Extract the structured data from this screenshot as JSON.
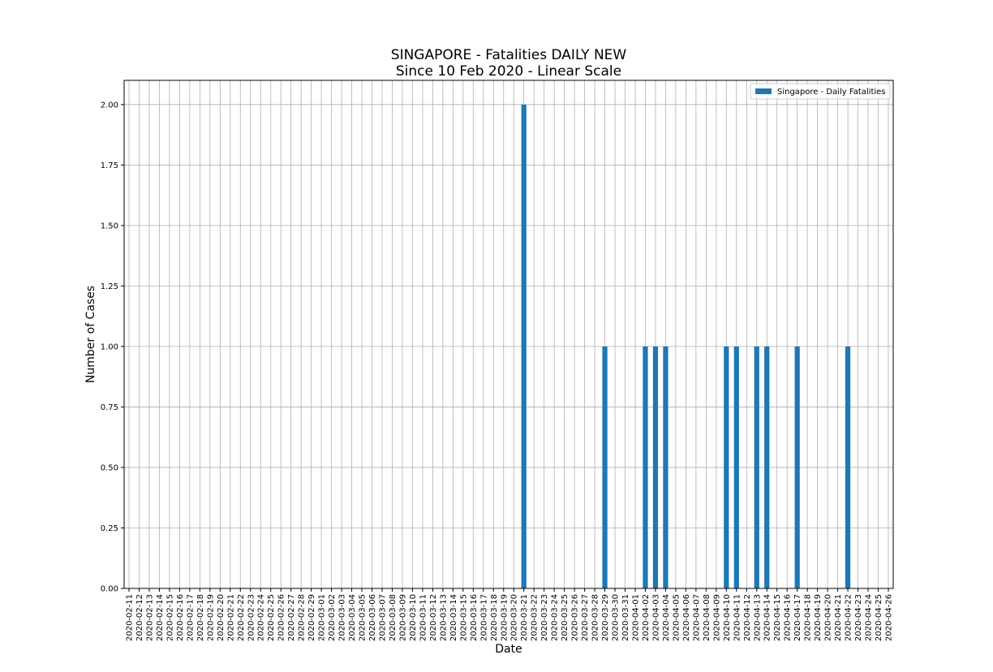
{
  "chart_data": {
    "type": "bar",
    "title": "SINGAPORE - Fatalities DAILY NEW",
    "subtitle": "Since 10 Feb 2020 - Linear Scale",
    "xlabel": "Date",
    "ylabel": "Number of Cases",
    "ylim": [
      0,
      2.1
    ],
    "yticks": [
      "0.00",
      "0.25",
      "0.50",
      "0.75",
      "1.00",
      "1.25",
      "1.50",
      "1.75",
      "2.00"
    ],
    "grid": true,
    "legend_position": "top-right",
    "colors": {
      "bar": "#1f77b4",
      "grid": "#b0b0b0"
    },
    "categories": [
      "2020-02-11",
      "2020-02-12",
      "2020-02-13",
      "2020-02-14",
      "2020-02-15",
      "2020-02-16",
      "2020-02-17",
      "2020-02-18",
      "2020-02-19",
      "2020-02-20",
      "2020-02-21",
      "2020-02-22",
      "2020-02-23",
      "2020-02-24",
      "2020-02-25",
      "2020-02-26",
      "2020-02-27",
      "2020-02-28",
      "2020-02-29",
      "2020-03-01",
      "2020-03-02",
      "2020-03-03",
      "2020-03-04",
      "2020-03-05",
      "2020-03-06",
      "2020-03-07",
      "2020-03-08",
      "2020-03-09",
      "2020-03-10",
      "2020-03-11",
      "2020-03-12",
      "2020-03-13",
      "2020-03-14",
      "2020-03-15",
      "2020-03-16",
      "2020-03-17",
      "2020-03-18",
      "2020-03-19",
      "2020-03-20",
      "2020-03-21",
      "2020-03-22",
      "2020-03-23",
      "2020-03-24",
      "2020-03-25",
      "2020-03-26",
      "2020-03-27",
      "2020-03-28",
      "2020-03-29",
      "2020-03-30",
      "2020-03-31",
      "2020-04-01",
      "2020-04-02",
      "2020-04-03",
      "2020-04-04",
      "2020-04-05",
      "2020-04-06",
      "2020-04-07",
      "2020-04-08",
      "2020-04-09",
      "2020-04-10",
      "2020-04-11",
      "2020-04-12",
      "2020-04-13",
      "2020-04-14",
      "2020-04-15",
      "2020-04-16",
      "2020-04-17",
      "2020-04-18",
      "2020-04-19",
      "2020-04-20",
      "2020-04-21",
      "2020-04-22",
      "2020-04-23",
      "2020-04-24",
      "2020-04-25",
      "2020-04-26"
    ],
    "series": [
      {
        "name": "Singapore - Daily Fatalities",
        "values": [
          0,
          0,
          0,
          0,
          0,
          0,
          0,
          0,
          0,
          0,
          0,
          0,
          0,
          0,
          0,
          0,
          0,
          0,
          0,
          0,
          0,
          0,
          0,
          0,
          0,
          0,
          0,
          0,
          0,
          0,
          0,
          0,
          0,
          0,
          0,
          0,
          0,
          0,
          0,
          2,
          0,
          0,
          0,
          0,
          0,
          0,
          0,
          1,
          0,
          0,
          0,
          1,
          1,
          1,
          0,
          0,
          0,
          0,
          0,
          1,
          1,
          0,
          1,
          1,
          0,
          0,
          1,
          0,
          0,
          0,
          0,
          1,
          0,
          0,
          0,
          0
        ]
      }
    ]
  }
}
